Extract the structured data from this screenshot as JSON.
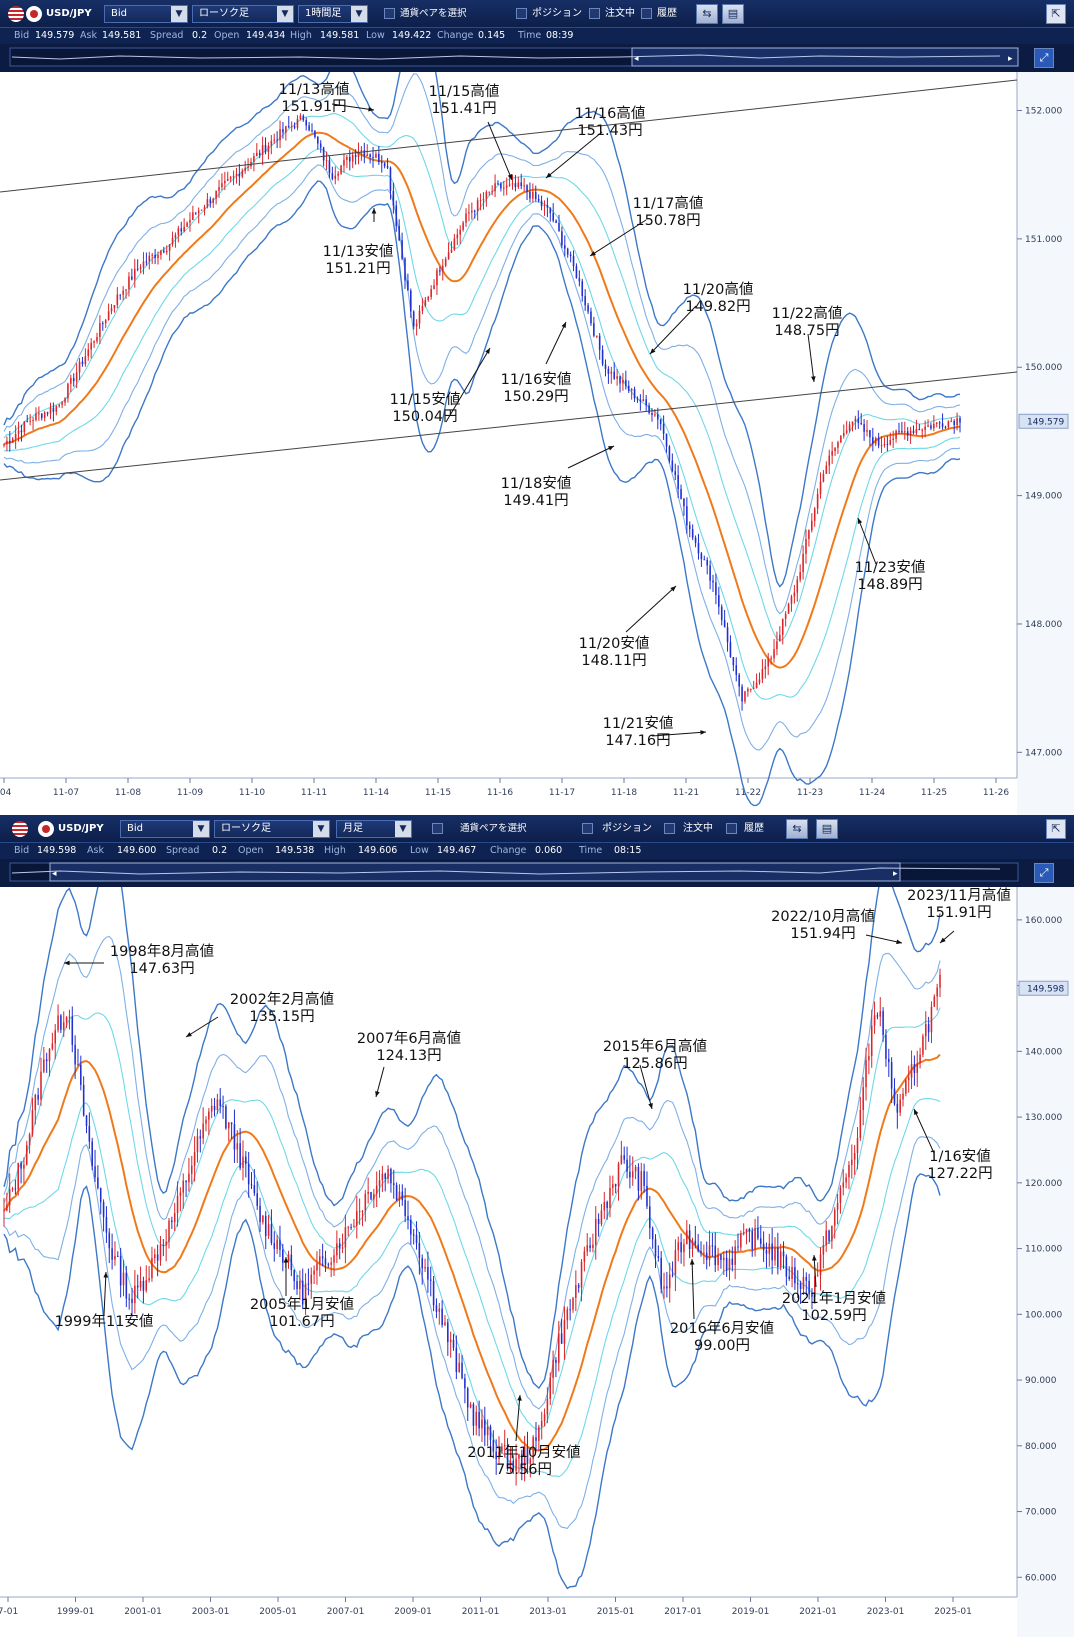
{
  "panels": [
    {
      "symbol": "USD/JPY",
      "price_type": "Bid",
      "chart_type": "ローソク足",
      "timeframe": "1時間足",
      "pair_select": "通貨ペアを選択",
      "position": "ポジション",
      "orders": "注文中",
      "history": "履歴",
      "quote": {
        "bid_label": "Bid",
        "bid": "149.579",
        "ask_label": "Ask",
        "ask": "149.581",
        "spread_label": "Spread",
        "spread": "0.2",
        "open_label": "Open",
        "open": "149.434",
        "high_label": "High",
        "high": "149.581",
        "low_label": "Low",
        "low": "149.422",
        "change_label": "Change",
        "change": "0.145",
        "time_label": "Time",
        "time": "08:39"
      },
      "current_price": "149.579"
    },
    {
      "symbol": "USD/JPY",
      "price_type": "Bid",
      "chart_type": "ローソク足",
      "timeframe": "月足",
      "pair_select": "通貨ペアを選択",
      "position": "ポジション",
      "orders": "注文中",
      "history": "履歴",
      "quote": {
        "bid_label": "Bid",
        "bid": "149.598",
        "ask_label": "Ask",
        "ask": "149.600",
        "spread_label": "Spread",
        "spread": "0.2",
        "open_label": "Open",
        "open": "149.538",
        "high_label": "High",
        "high": "149.606",
        "low_label": "Low",
        "low": "149.467",
        "change_label": "Change",
        "change": "0.060",
        "time_label": "Time",
        "time": "08:15"
      },
      "current_price": "149.598"
    }
  ],
  "chart_data": [
    {
      "type": "candlestick",
      "timeframe": "1時間足",
      "x_ticks": [
        "-04",
        "11-07",
        "11-08",
        "11-09",
        "11-10",
        "11-11",
        "11-14",
        "11-15",
        "11-16",
        "11-17",
        "11-18",
        "11-21",
        "11-22",
        "11-23",
        "11-24",
        "11-25",
        "11-26"
      ],
      "y_ticks": [
        "152.000",
        "151.000",
        "150.000",
        "149.000",
        "148.000",
        "147.000"
      ],
      "ylim": [
        146.8,
        152.3
      ],
      "current_price": 149.579,
      "close_path": [
        149.4,
        149.6,
        149.7,
        150.1,
        150.5,
        150.8,
        150.95,
        151.2,
        151.4,
        151.6,
        151.8,
        151.95,
        151.5,
        151.7,
        151.6,
        150.3,
        150.8,
        151.2,
        151.4,
        151.4,
        151.2,
        150.7,
        150.0,
        149.8,
        149.6,
        148.8,
        148.3,
        147.4,
        147.7,
        148.3,
        149.2,
        149.6,
        149.4,
        149.5,
        149.55,
        149.6
      ],
      "annotations": [
        {
          "date": "11/13高値",
          "price": "151.91円"
        },
        {
          "date": "11/13安値",
          "price": "151.21円"
        },
        {
          "date": "11/15高値",
          "price": "151.41円"
        },
        {
          "date": "11/16高値",
          "price": "151.43円"
        },
        {
          "date": "11/17高値",
          "price": "150.78円"
        },
        {
          "date": "11/20高値",
          "price": "149.82円"
        },
        {
          "date": "11/22高値",
          "price": "148.75円"
        },
        {
          "date": "11/15安値",
          "price": "150.04円"
        },
        {
          "date": "11/16安値",
          "price": "150.29円"
        },
        {
          "date": "11/18安値",
          "price": "149.41円"
        },
        {
          "date": "11/23安値",
          "price": "148.89円"
        },
        {
          "date": "11/20安値",
          "price": "148.11円"
        },
        {
          "date": "11/21安値",
          "price": "147.16円"
        }
      ]
    },
    {
      "type": "candlestick",
      "timeframe": "月足",
      "x_ticks": [
        "7-01",
        "1999-01",
        "2001-01",
        "2003-01",
        "2005-01",
        "2007-01",
        "2009-01",
        "2011-01",
        "2013-01",
        "2015-01",
        "2017-01",
        "2019-01",
        "2021-01",
        "2023-01",
        "2025-01"
      ],
      "y_ticks": [
        "160.000",
        "150.000",
        "140.000",
        "130.000",
        "120.000",
        "110.000",
        "100.000",
        "90.000",
        "80.000",
        "70.000",
        "60.000"
      ],
      "ylim": [
        57,
        165
      ],
      "current_price": 149.598,
      "close_path": [
        115,
        125,
        140,
        147,
        125,
        110,
        102,
        108,
        115,
        125,
        133,
        125,
        115,
        110,
        103,
        108,
        112,
        118,
        122,
        115,
        105,
        95,
        85,
        80,
        77,
        80,
        95,
        105,
        115,
        123,
        120,
        103,
        112,
        110,
        108,
        112,
        110,
        106,
        104,
        115,
        125,
        148,
        130,
        140,
        150
      ],
      "annotations": [
        {
          "date": "1998年8月高値",
          "price": "147.63円"
        },
        {
          "date": "1999年11安値",
          "price": ""
        },
        {
          "date": "2002年2月高値",
          "price": "135.15円"
        },
        {
          "date": "2005年1月安値",
          "price": "101.67円"
        },
        {
          "date": "2007年6月高値",
          "price": "124.13円"
        },
        {
          "date": "2011年10月安値",
          "price": "75.56円"
        },
        {
          "date": "2015年6月高値",
          "price": "125.86円"
        },
        {
          "date": "2016年6月安値",
          "price": "99.00円"
        },
        {
          "date": "2021年1月安値",
          "price": "102.59円"
        },
        {
          "date": "2022/10月高値",
          "price": "151.94円"
        },
        {
          "date": "2023/11月高値",
          "price": "151.91円"
        },
        {
          "date": "1/16安値",
          "price": "127.22円"
        }
      ]
    }
  ],
  "colors": {
    "toolbar": "#14295a",
    "up": "#d9262b",
    "down": "#1f2fd0",
    "ma": "#f07a1a",
    "band_outer": "#3d78c8",
    "band_mid": "#7fb0e6",
    "band_inner": "#6fd8e8"
  }
}
